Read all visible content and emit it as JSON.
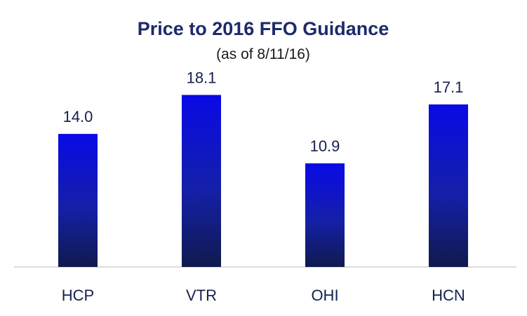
{
  "chart_data": {
    "type": "bar",
    "title": "Price to 2016 FFO Guidance",
    "subtitle": "(as of 8/11/16)",
    "categories": [
      "HCP",
      "VTR",
      "OHI",
      "HCN"
    ],
    "values": [
      14.0,
      18.1,
      10.9,
      17.1
    ],
    "value_labels": [
      "14.0",
      "18.1",
      "10.9",
      "17.1"
    ],
    "xlabel": "",
    "ylabel": "",
    "ylim": [
      0,
      18.8
    ],
    "grid": false,
    "legend": "none",
    "colors": {
      "bar_top": "#0a0ae6",
      "bar_bottom": "#101a4e",
      "title": "#1c2a6b",
      "axis": "#d0d0d0"
    }
  }
}
